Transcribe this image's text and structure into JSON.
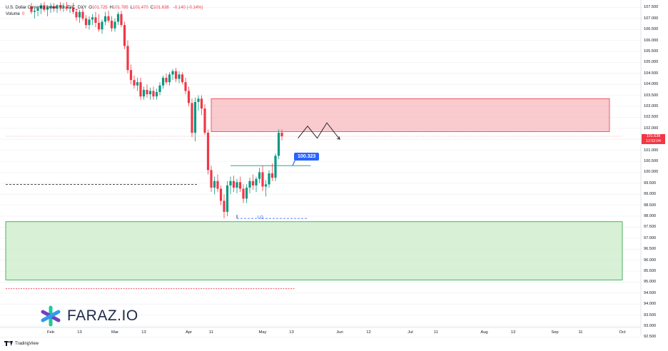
{
  "header": {
    "symbol_line": "U.S. Dollar Currency Index, 1D, TVC_DXY",
    "ohlc": [
      {
        "k": "O",
        "v": "101.725"
      },
      {
        "k": "H",
        "v": "101.785"
      },
      {
        "k": "L",
        "v": "101.470"
      },
      {
        "k": "C",
        "v": "101.638"
      }
    ],
    "change": "-0.140 (-0.14%)",
    "volume_label": "Volume",
    "volume_value": "0"
  },
  "price_badge": {
    "price": "101.638",
    "countdown": "12:52:04"
  },
  "callout_label": "100.323",
  "lq_label": "LQ",
  "logo_text": "FARAZ.IO",
  "footer_text": "TradingView",
  "colors": {
    "up": "#089981",
    "down": "#f23645",
    "supply_zone": "#f7b8bd",
    "demand_zone": "#cdeccc",
    "callout": "#2962ff"
  },
  "chart_data": {
    "type": "candlestick",
    "yaxis_ticks": [
      "107.500",
      "107.000",
      "106.500",
      "106.000",
      "105.500",
      "105.000",
      "104.500",
      "104.000",
      "103.500",
      "103.000",
      "102.500",
      "102.000",
      "101.500",
      "101.000",
      "100.500",
      "100.000",
      "99.500",
      "99.000",
      "98.500",
      "98.000",
      "97.500",
      "97.000",
      "96.500",
      "96.000",
      "95.500",
      "95.000",
      "94.500",
      "94.000",
      "93.500",
      "93.000",
      "92.500"
    ],
    "ylim": [
      92.5,
      107.7
    ],
    "xaxis_ticks": [
      {
        "label": "Feb",
        "t": 0
      },
      {
        "label": "13",
        "t": 9
      },
      {
        "label": "Mar",
        "t": 20
      },
      {
        "label": "13",
        "t": 29
      },
      {
        "label": "Apr",
        "t": 43
      },
      {
        "label": "11",
        "t": 50
      },
      {
        "label": "May",
        "t": 66
      },
      {
        "label": "13",
        "t": 75
      },
      {
        "label": "Jun",
        "t": 90
      },
      {
        "label": "12",
        "t": 99
      },
      {
        "label": "Jul",
        "t": 112
      },
      {
        "label": "11",
        "t": 120
      },
      {
        "label": "Aug",
        "t": 135
      },
      {
        "label": "13",
        "t": 144
      },
      {
        "label": "Sep",
        "t": 157
      },
      {
        "label": "11",
        "t": 165
      },
      {
        "label": "Oct",
        "t": 178
      }
    ],
    "zones": [
      {
        "name": "supply",
        "from": 101.85,
        "to": 103.35,
        "t_start": 50,
        "t_end": 174
      },
      {
        "name": "demand",
        "from": 95.1,
        "to": 97.75,
        "t_start": -14,
        "t_end": 178
      }
    ],
    "levels": [
      {
        "name": "dashed-low",
        "value": 99.45,
        "t_start": -14,
        "t_end": 46
      },
      {
        "name": "liquidity",
        "value": 97.9,
        "t_start": 58,
        "t_end": 80
      },
      {
        "name": "dashed-bottom",
        "value": 94.7,
        "t_start": -14,
        "t_end": 76
      },
      {
        "name": "range-high",
        "value": 100.3,
        "t_start": 56,
        "t_end": 81
      },
      {
        "name": "current",
        "value": 101.638,
        "t_start": -14,
        "t_end": 178
      }
    ],
    "projection": [
      {
        "t": 77,
        "v": 101.55
      },
      {
        "t": 80,
        "v": 102.1
      },
      {
        "t": 83,
        "v": 101.55
      },
      {
        "t": 86,
        "v": 102.25
      },
      {
        "t": 90,
        "v": 101.5
      }
    ],
    "candles": [
      {
        "t": -6,
        "o": 107.55,
        "h": 107.7,
        "l": 107.2,
        "c": 107.3
      },
      {
        "t": -5,
        "o": 107.3,
        "h": 107.5,
        "l": 107.0,
        "c": 107.35
      },
      {
        "t": -4,
        "o": 107.35,
        "h": 107.55,
        "l": 107.1,
        "c": 107.45
      },
      {
        "t": -3,
        "o": 107.45,
        "h": 107.7,
        "l": 107.2,
        "c": 107.6
      },
      {
        "t": -2,
        "o": 107.6,
        "h": 107.75,
        "l": 107.3,
        "c": 107.4
      },
      {
        "t": -1,
        "o": 107.4,
        "h": 107.6,
        "l": 107.1,
        "c": 107.5
      },
      {
        "t": 0,
        "o": 107.5,
        "h": 107.7,
        "l": 107.25,
        "c": 107.55
      },
      {
        "t": 1,
        "o": 107.55,
        "h": 107.7,
        "l": 107.3,
        "c": 107.45
      },
      {
        "t": 2,
        "o": 107.45,
        "h": 107.65,
        "l": 107.25,
        "c": 107.6
      },
      {
        "t": 3,
        "o": 107.6,
        "h": 107.75,
        "l": 107.35,
        "c": 107.5
      },
      {
        "t": 4,
        "o": 107.5,
        "h": 107.7,
        "l": 107.3,
        "c": 107.55
      },
      {
        "t": 5,
        "o": 107.55,
        "h": 107.75,
        "l": 107.35,
        "c": 107.45
      },
      {
        "t": 6,
        "o": 107.45,
        "h": 107.6,
        "l": 107.25,
        "c": 107.5
      },
      {
        "t": 7,
        "o": 107.5,
        "h": 107.7,
        "l": 107.2,
        "c": 107.3
      },
      {
        "t": 8,
        "o": 107.3,
        "h": 107.45,
        "l": 106.9,
        "c": 107.05
      },
      {
        "t": 9,
        "o": 107.05,
        "h": 107.4,
        "l": 106.8,
        "c": 107.3
      },
      {
        "t": 10,
        "o": 107.3,
        "h": 107.5,
        "l": 106.9,
        "c": 107.0
      },
      {
        "t": 11,
        "o": 107.0,
        "h": 107.15,
        "l": 106.55,
        "c": 106.7
      },
      {
        "t": 12,
        "o": 106.7,
        "h": 107.1,
        "l": 106.5,
        "c": 106.95
      },
      {
        "t": 13,
        "o": 106.95,
        "h": 107.2,
        "l": 106.7,
        "c": 107.05
      },
      {
        "t": 14,
        "o": 107.05,
        "h": 107.3,
        "l": 106.6,
        "c": 106.8
      },
      {
        "t": 15,
        "o": 106.8,
        "h": 107.2,
        "l": 106.4,
        "c": 106.5
      },
      {
        "t": 16,
        "o": 106.5,
        "h": 106.95,
        "l": 106.3,
        "c": 106.85
      },
      {
        "t": 17,
        "o": 106.85,
        "h": 107.3,
        "l": 106.7,
        "c": 107.1
      },
      {
        "t": 18,
        "o": 107.1,
        "h": 107.35,
        "l": 106.8,
        "c": 106.9
      },
      {
        "t": 19,
        "o": 106.9,
        "h": 107.1,
        "l": 106.4,
        "c": 106.55
      },
      {
        "t": 20,
        "o": 106.55,
        "h": 107.0,
        "l": 106.4,
        "c": 106.85
      },
      {
        "t": 21,
        "o": 106.85,
        "h": 107.3,
        "l": 106.7,
        "c": 107.2
      },
      {
        "t": 22,
        "o": 107.2,
        "h": 107.35,
        "l": 106.6,
        "c": 106.7
      },
      {
        "t": 23,
        "o": 106.7,
        "h": 106.85,
        "l": 105.6,
        "c": 105.75
      },
      {
        "t": 24,
        "o": 105.75,
        "h": 106.0,
        "l": 104.5,
        "c": 104.65
      },
      {
        "t": 25,
        "o": 104.65,
        "h": 104.9,
        "l": 104.0,
        "c": 104.2
      },
      {
        "t": 26,
        "o": 104.2,
        "h": 104.4,
        "l": 103.8,
        "c": 103.95
      },
      {
        "t": 27,
        "o": 103.95,
        "h": 104.3,
        "l": 103.7,
        "c": 104.1
      },
      {
        "t": 28,
        "o": 104.1,
        "h": 104.3,
        "l": 103.3,
        "c": 103.45
      },
      {
        "t": 29,
        "o": 103.45,
        "h": 103.9,
        "l": 103.3,
        "c": 103.75
      },
      {
        "t": 30,
        "o": 103.75,
        "h": 104.0,
        "l": 103.4,
        "c": 103.55
      },
      {
        "t": 31,
        "o": 103.55,
        "h": 103.85,
        "l": 103.3,
        "c": 103.7
      },
      {
        "t": 32,
        "o": 103.7,
        "h": 103.9,
        "l": 103.3,
        "c": 103.45
      },
      {
        "t": 33,
        "o": 103.45,
        "h": 103.8,
        "l": 103.3,
        "c": 103.65
      },
      {
        "t": 34,
        "o": 103.65,
        "h": 104.1,
        "l": 103.5,
        "c": 103.95
      },
      {
        "t": 35,
        "o": 103.95,
        "h": 104.4,
        "l": 103.8,
        "c": 104.3
      },
      {
        "t": 36,
        "o": 104.3,
        "h": 104.5,
        "l": 104.0,
        "c": 104.1
      },
      {
        "t": 37,
        "o": 104.1,
        "h": 104.55,
        "l": 103.95,
        "c": 104.45
      },
      {
        "t": 38,
        "o": 104.45,
        "h": 104.7,
        "l": 104.2,
        "c": 104.6
      },
      {
        "t": 39,
        "o": 104.6,
        "h": 104.75,
        "l": 104.1,
        "c": 104.25
      },
      {
        "t": 40,
        "o": 104.25,
        "h": 104.6,
        "l": 104.05,
        "c": 104.45
      },
      {
        "t": 41,
        "o": 104.45,
        "h": 104.55,
        "l": 104.0,
        "c": 104.1
      },
      {
        "t": 42,
        "o": 104.1,
        "h": 104.3,
        "l": 103.55,
        "c": 103.7
      },
      {
        "t": 43,
        "o": 103.7,
        "h": 103.9,
        "l": 103.0,
        "c": 103.15
      },
      {
        "t": 44,
        "o": 103.15,
        "h": 103.35,
        "l": 101.6,
        "c": 101.8
      },
      {
        "t": 45,
        "o": 101.8,
        "h": 103.4,
        "l": 101.4,
        "c": 103.2
      },
      {
        "t": 46,
        "o": 103.2,
        "h": 103.5,
        "l": 102.8,
        "c": 103.35
      },
      {
        "t": 47,
        "o": 103.35,
        "h": 103.5,
        "l": 102.6,
        "c": 102.9
      },
      {
        "t": 48,
        "o": 102.9,
        "h": 103.1,
        "l": 101.7,
        "c": 101.8
      },
      {
        "t": 49,
        "o": 101.8,
        "h": 101.95,
        "l": 99.9,
        "c": 100.1
      },
      {
        "t": 50,
        "o": 100.1,
        "h": 100.3,
        "l": 99.1,
        "c": 99.3
      },
      {
        "t": 51,
        "o": 99.3,
        "h": 99.8,
        "l": 99.0,
        "c": 99.6
      },
      {
        "t": 52,
        "o": 99.6,
        "h": 99.9,
        "l": 99.1,
        "c": 99.25
      },
      {
        "t": 53,
        "o": 99.25,
        "h": 99.4,
        "l": 98.5,
        "c": 98.7
      },
      {
        "t": 54,
        "o": 98.7,
        "h": 99.0,
        "l": 97.9,
        "c": 98.2
      },
      {
        "t": 55,
        "o": 98.2,
        "h": 99.6,
        "l": 98.0,
        "c": 99.4
      },
      {
        "t": 56,
        "o": 99.4,
        "h": 99.8,
        "l": 99.0,
        "c": 99.6
      },
      {
        "t": 57,
        "o": 99.6,
        "h": 99.85,
        "l": 99.1,
        "c": 99.3
      },
      {
        "t": 58,
        "o": 99.3,
        "h": 99.7,
        "l": 99.05,
        "c": 99.55
      },
      {
        "t": 59,
        "o": 99.55,
        "h": 99.8,
        "l": 99.1,
        "c": 99.25
      },
      {
        "t": 60,
        "o": 99.25,
        "h": 99.45,
        "l": 98.6,
        "c": 98.8
      },
      {
        "t": 61,
        "o": 98.8,
        "h": 99.45,
        "l": 98.6,
        "c": 99.3
      },
      {
        "t": 62,
        "o": 99.3,
        "h": 99.75,
        "l": 99.05,
        "c": 99.6
      },
      {
        "t": 63,
        "o": 99.6,
        "h": 99.9,
        "l": 99.2,
        "c": 99.4
      },
      {
        "t": 64,
        "o": 99.4,
        "h": 99.8,
        "l": 99.1,
        "c": 99.7
      },
      {
        "t": 65,
        "o": 99.7,
        "h": 100.2,
        "l": 99.5,
        "c": 100.0
      },
      {
        "t": 66,
        "o": 100.0,
        "h": 100.3,
        "l": 99.15,
        "c": 99.35
      },
      {
        "t": 67,
        "o": 99.35,
        "h": 99.65,
        "l": 98.9,
        "c": 99.45
      },
      {
        "t": 68,
        "o": 99.45,
        "h": 100.1,
        "l": 99.3,
        "c": 99.95
      },
      {
        "t": 69,
        "o": 99.95,
        "h": 100.4,
        "l": 99.6,
        "c": 99.75
      },
      {
        "t": 70,
        "o": 99.75,
        "h": 100.85,
        "l": 99.6,
        "c": 100.75
      },
      {
        "t": 71,
        "o": 100.75,
        "h": 101.95,
        "l": 100.6,
        "c": 101.8
      },
      {
        "t": 72,
        "o": 101.8,
        "h": 101.95,
        "l": 101.45,
        "c": 101.638
      }
    ]
  }
}
